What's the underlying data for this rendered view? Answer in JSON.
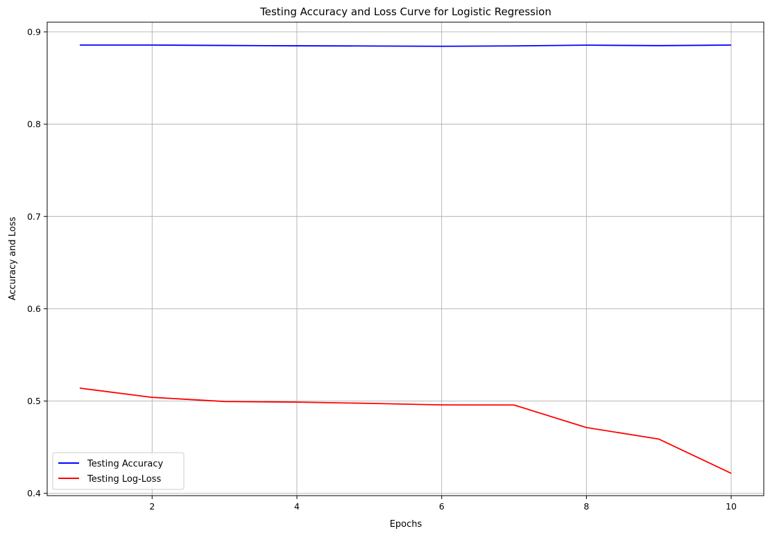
{
  "chart_data": {
    "type": "line",
    "title": "Testing Accuracy and Loss Curve for Logistic Regression",
    "xlabel": "Epochs",
    "ylabel": "Accuracy and Loss",
    "x": [
      1,
      2,
      3,
      4,
      5,
      6,
      7,
      8,
      9,
      10
    ],
    "xlim": [
      0.55,
      10.45
    ],
    "ylim": [
      0.3975,
      0.9105
    ],
    "xticks": [
      2,
      4,
      6,
      8,
      10
    ],
    "yticks": [
      0.4,
      0.5,
      0.6,
      0.7,
      0.8,
      0.9
    ],
    "xtick_labels": [
      "2",
      "4",
      "6",
      "8",
      "10"
    ],
    "ytick_labels": [
      "0.4",
      "0.5",
      "0.6",
      "0.7",
      "0.8",
      "0.9"
    ],
    "grid": true,
    "legend_position": "lower-left",
    "series": [
      {
        "name": "Testing Accuracy",
        "color": "#0000ff",
        "values": [
          0.8857,
          0.8857,
          0.8853,
          0.8849,
          0.8847,
          0.8844,
          0.8848,
          0.8856,
          0.8851,
          0.8857
        ]
      },
      {
        "name": "Testing Log-Loss",
        "color": "#ff0000",
        "values": [
          0.514,
          0.504,
          0.4995,
          0.4988,
          0.4975,
          0.4958,
          0.4957,
          0.4713,
          0.4588,
          0.4217
        ]
      }
    ]
  }
}
